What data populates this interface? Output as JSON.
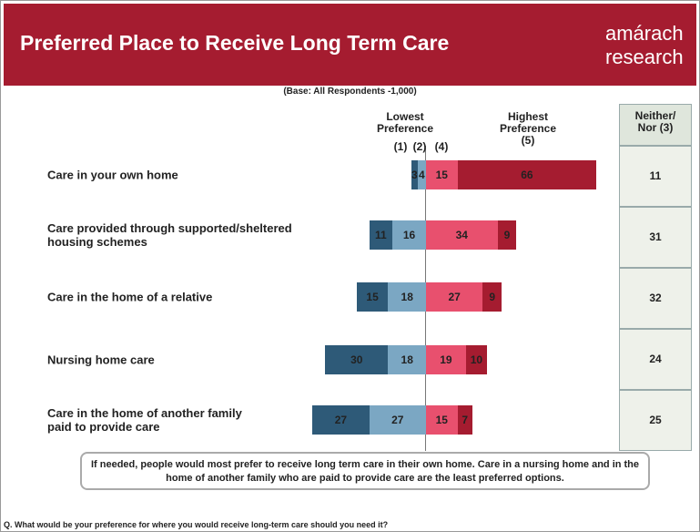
{
  "chart_data": {
    "type": "diverging_bar",
    "title": "Preferred Place to Receive Long Term Care",
    "logo": [
      "amárach",
      "research"
    ],
    "subtitle": "(Base:  All Respondents -1,000)",
    "low_heading": "Lowest\nPreference",
    "high_heading": "Highest\nPreference",
    "categories": [
      "Care in your own home",
      "Care provided through supported/sheltered\nhousing schemes",
      "Care in the home of a relative",
      "Nursing home care",
      "Care in the home of another family\npaid to provide care"
    ],
    "series": [
      {
        "name": "(1)",
        "side": "left",
        "color": "#2e5a78",
        "values": [
          3,
          11,
          15,
          30,
          27
        ]
      },
      {
        "name": "(2)",
        "side": "left",
        "color": "#7ba7c3",
        "values": [
          4,
          16,
          18,
          18,
          27
        ]
      },
      {
        "name": "(4)",
        "side": "right",
        "color": "#e8506e",
        "values": [
          15,
          34,
          27,
          19,
          15
        ]
      },
      {
        "name": "(5)",
        "side": "right",
        "color": "#a51c30",
        "values": [
          66,
          9,
          9,
          10,
          7
        ]
      }
    ],
    "neither": {
      "name": "Neither/\nNor (3)",
      "values": [
        11,
        31,
        32,
        24,
        25
      ]
    },
    "note": "If needed, people would most prefer to receive long term care in their own home.  Care in a nursing home and in the home of another family who are paid to provide care are the least preferred options.",
    "question": "Q. What would be your preference for where you would receive long-term care should you need it?"
  }
}
